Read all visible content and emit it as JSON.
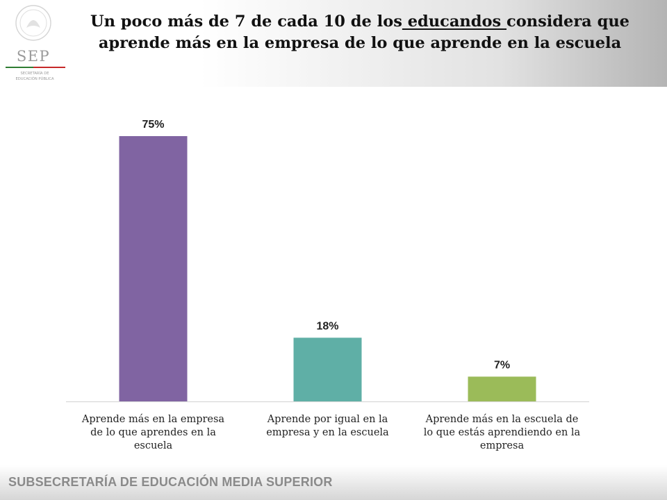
{
  "header": {
    "title_before": "Un poco más de 7 de cada 10 de los",
    "title_underlined": " educandos ",
    "title_after": "considera que aprende más en la empresa de lo que aprende en la escuela",
    "logo_text": "SEP",
    "logo_subtitle_line1": "SECRETARÍA DE",
    "logo_subtitle_line2": "EDUCACIÓN PÚBLICA",
    "logo_accent_colors": [
      "#2e7d32",
      "#c62828"
    ]
  },
  "chart_data": {
    "type": "bar",
    "categories": [
      [
        "Aprende más en la empresa",
        "de lo que aprendes en la",
        "escuela"
      ],
      [
        "Aprende por igual en la",
        "empresa y en la escuela"
      ],
      [
        "Aprende más en la escuela de",
        "lo que estás aprendiendo en la",
        "empresa"
      ]
    ],
    "values": [
      75,
      18,
      7
    ],
    "value_labels": [
      "75%",
      "18%",
      "7%"
    ],
    "colors": [
      "#8064a2",
      "#5fafa6",
      "#9bbb59"
    ],
    "ylim": [
      0,
      75
    ],
    "grid": false,
    "legend": "none"
  },
  "footer": {
    "text": "SUBSECRETARÍA DE EDUCACIÓN MEDIA SUPERIOR"
  }
}
